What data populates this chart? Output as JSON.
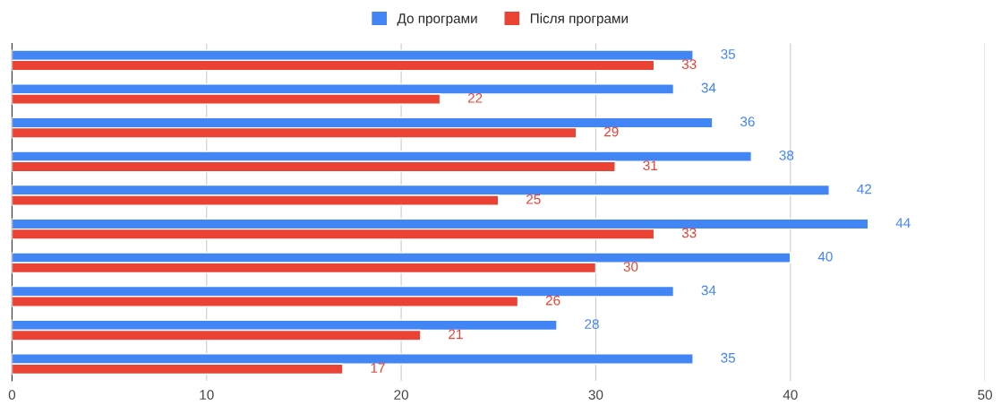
{
  "chart_data": {
    "type": "bar",
    "orientation": "horizontal",
    "categories": [
      null,
      null,
      null,
      null,
      null,
      null,
      null,
      null,
      null,
      null
    ],
    "series": [
      {
        "name": "До програми",
        "color": "#4285f4",
        "values": [
          35,
          34,
          36,
          38,
          42,
          44,
          40,
          34,
          28,
          35
        ]
      },
      {
        "name": "Після програми",
        "color": "#ea4335",
        "values": [
          33,
          22,
          29,
          31,
          25,
          33,
          30,
          26,
          21,
          17
        ]
      }
    ],
    "xlim": [
      0,
      50
    ],
    "xticks": [
      0,
      10,
      20,
      30,
      40,
      50
    ],
    "grid": "x",
    "legend": "top",
    "data_labels": true,
    "tick_labels": "x"
  }
}
